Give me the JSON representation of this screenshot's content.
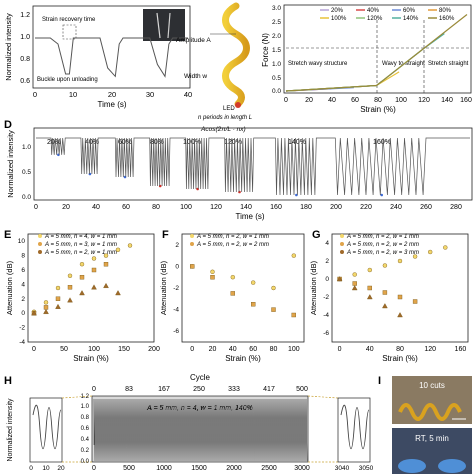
{
  "panels": {
    "C": {
      "ylabel": "Normalized intensity",
      "xlabel": "Time (s)",
      "xticks": [
        "0",
        "10",
        "20",
        "30",
        "40"
      ],
      "yticks": [
        "0.6",
        "0.8",
        "1.0",
        "1.2"
      ],
      "annotations": {
        "recovery": "Strain recovery time",
        "buckle": "Buckle upon unloading"
      }
    },
    "schematic": {
      "amplitude": "Amplitude A",
      "width": "Width w",
      "led": "LED",
      "periods": "n periods in length L",
      "formula": "Acos(2π/L · nx)"
    },
    "force": {
      "ylabel": "Force (N)",
      "xlabel": "Strain (%)",
      "xticks": [
        "0",
        "20",
        "40",
        "60",
        "80",
        "100",
        "120",
        "140",
        "160"
      ],
      "yticks": [
        "0.0",
        "0.5",
        "1.0",
        "1.5",
        "2.0",
        "2.5",
        "3.0"
      ],
      "regions": [
        "Stretch wavy structure",
        "Wavy to straight",
        "Stretch straight"
      ],
      "legend": [
        "20%",
        "40%",
        "60%",
        "80%",
        "100%",
        "120%",
        "140%",
        "160%"
      ],
      "legend_colors": [
        "#b7a3d8",
        "#d94a4a",
        "#6c8ad8",
        "#e39a3a",
        "#e8c23a",
        "#8fc37a",
        "#52b1a1",
        "#9a8a3a"
      ]
    },
    "D": {
      "letter": "D",
      "ylabel": "Normalized intensity",
      "xlabel": "Time (s)",
      "xticks": [
        "0",
        "20",
        "40",
        "60",
        "80",
        "100",
        "120",
        "140",
        "160",
        "180",
        "200",
        "220",
        "240",
        "260",
        "280"
      ],
      "yticks": [
        "0.0",
        "0.5",
        "1.0"
      ],
      "strains": [
        "20%",
        "40%",
        "60%",
        "80%",
        "100%",
        "120%",
        "140%",
        "160%"
      ]
    },
    "E": {
      "letter": "E",
      "ylabel": "Attenuation (dB)",
      "xlabel": "Strain (%)",
      "xticks": [
        "0",
        "50",
        "100",
        "150",
        "200"
      ],
      "yticks": [
        "-4",
        "-2",
        "0",
        "2",
        "4",
        "6",
        "8",
        "10"
      ],
      "legend": [
        "A = 5 mm, n = 4, w = 1 mm",
        "A = 5 mm, n = 3, w = 1 mm",
        "A = 5 mm, n = 2, w = 1 mm"
      ]
    },
    "F": {
      "letter": "F",
      "ylabel": "Attenuation (dB)",
      "xlabel": "Strain (%)",
      "xticks": [
        "0",
        "20",
        "40",
        "60",
        "80",
        "100"
      ],
      "yticks": [
        "-6",
        "-4",
        "-2",
        "0",
        "2"
      ],
      "legend": [
        "A = 5 mm, n = 2, w = 1 mm",
        "A = 5 mm, n = 2, w = 2 mm"
      ]
    },
    "G": {
      "letter": "G",
      "ylabel": "Attenuation (dB)",
      "xlabel": "Strain (%)",
      "xticks": [
        "0",
        "40",
        "80",
        "120",
        "160"
      ],
      "yticks": [
        "-6",
        "-4",
        "-2",
        "0",
        "2",
        "4"
      ],
      "legend": [
        "A = 5 mm, n = 2, w = 1 mm",
        "A = 5 mm, n = 2, w = 2 mm",
        "A = 5 mm, n = 2, w = 3 mm"
      ]
    },
    "H": {
      "letter": "H",
      "ylabel": "Normalized intensity",
      "cycle_label": "Cycle",
      "cycle_ticks": [
        "0",
        "83",
        "167",
        "250",
        "333",
        "417",
        "500"
      ],
      "time_ticks": [
        "0",
        "500",
        "1000",
        "1500",
        "2000",
        "2500",
        "3000"
      ],
      "yticks": [
        "0.0",
        "0.2",
        "0.4",
        "0.6",
        "0.8",
        "1.0",
        "1.2"
      ],
      "inset_left_ticks": [
        "0",
        "10",
        "20"
      ],
      "inset_right_ticks": [
        "3040",
        "3050"
      ],
      "condition": "A = 5 mm, n = 4, w = 1 mm, 140%"
    },
    "I": {
      "letter": "I",
      "photo1": "10 cuts",
      "photo2": "RT, 5 min"
    }
  },
  "chart_data": [
    {
      "type": "line",
      "panel": "C",
      "x": [
        0,
        4,
        6,
        8,
        9,
        10,
        17,
        19,
        21,
        22,
        23,
        30,
        32,
        34,
        35,
        36,
        40
      ],
      "y": [
        1.0,
        1.0,
        0.95,
        0.7,
        0.7,
        1.0,
        1.0,
        0.75,
        0.68,
        0.95,
        1.0,
        1.0,
        0.78,
        0.68,
        0.95,
        1.0,
        1.0
      ],
      "xlim": [
        0,
        40
      ],
      "ylim": [
        0.6,
        1.25
      ]
    },
    {
      "type": "line",
      "panel": "force",
      "series": [
        {
          "name": "20%",
          "x": [
            0,
            20
          ],
          "y": [
            0.0,
            0.05
          ]
        },
        {
          "name": "40%",
          "x": [
            0,
            40
          ],
          "y": [
            0.0,
            0.08
          ]
        },
        {
          "name": "60%",
          "x": [
            0,
            60
          ],
          "y": [
            0.0,
            0.12
          ]
        },
        {
          "name": "80%",
          "x": [
            0,
            80
          ],
          "y": [
            0.0,
            0.2
          ]
        },
        {
          "name": "100%",
          "x": [
            0,
            80,
            100
          ],
          "y": [
            0.0,
            0.2,
            0.7
          ]
        },
        {
          "name": "120%",
          "x": [
            0,
            80,
            120
          ],
          "y": [
            0.0,
            0.2,
            1.5
          ]
        },
        {
          "name": "140%",
          "x": [
            0,
            80,
            120,
            140
          ],
          "y": [
            0.0,
            0.2,
            1.5,
            2.1
          ]
        },
        {
          "name": "160%",
          "x": [
            0,
            80,
            120,
            160
          ],
          "y": [
            0.0,
            0.2,
            1.5,
            2.8
          ]
        }
      ],
      "xlim": [
        0,
        160
      ],
      "ylim": [
        0,
        3.0
      ]
    },
    {
      "type": "line",
      "panel": "D",
      "segments": [
        {
          "strain": "20%",
          "t0": 10,
          "t1": 20,
          "min": 0.72
        },
        {
          "strain": "40%",
          "t0": 30,
          "t1": 42,
          "min": 0.4
        },
        {
          "strain": "60%",
          "t0": 53,
          "t1": 66,
          "min": 0.35
        },
        {
          "strain": "80%",
          "t0": 76,
          "t1": 90,
          "min": 0.2
        },
        {
          "strain": "100%",
          "t0": 100,
          "t1": 116,
          "min": 0.15
        },
        {
          "strain": "120%",
          "t0": 126,
          "t1": 146,
          "min": 0.1
        },
        {
          "strain": "140%",
          "t0": 160,
          "t1": 188,
          "min": 0.05
        },
        {
          "strain": "160%",
          "t0": 200,
          "t1": 262,
          "min": 0.05
        }
      ],
      "xlim": [
        0,
        290
      ],
      "ylim": [
        0,
        1.1
      ]
    },
    {
      "type": "scatter",
      "panel": "E",
      "series": [
        {
          "name": "A = 5 mm, n = 4, w = 1 mm",
          "x": [
            0,
            20,
            40,
            60,
            80,
            100,
            120,
            140,
            160
          ],
          "y": [
            0.2,
            1.5,
            3.5,
            5.2,
            6.8,
            7.6,
            8.0,
            8.8,
            9.4
          ]
        },
        {
          "name": "A = 5 mm, n = 3, w = 1 mm",
          "x": [
            0,
            20,
            40,
            60,
            80,
            100,
            120
          ],
          "y": [
            0.0,
            0.8,
            2.0,
            3.6,
            5.0,
            6.0,
            6.8
          ]
        },
        {
          "name": "A = 5 mm, n = 2, w = 1 mm",
          "x": [
            0,
            20,
            40,
            60,
            80,
            100,
            120,
            140
          ],
          "y": [
            0.0,
            0.2,
            0.9,
            1.8,
            2.8,
            3.6,
            3.8,
            2.8
          ]
        }
      ],
      "xlim": [
        -10,
        200
      ],
      "ylim": [
        -4,
        11
      ]
    },
    {
      "type": "scatter",
      "panel": "F",
      "series": [
        {
          "name": "A = 5 mm, n = 2, w = 1 mm",
          "x": [
            0,
            20,
            40,
            60,
            80,
            100
          ],
          "y": [
            0.0,
            -0.5,
            -1.0,
            -1.5,
            -2.0,
            1.0
          ]
        },
        {
          "name": "A = 5 mm, n = 2, w = 2 mm",
          "x": [
            0,
            20,
            40,
            60,
            80,
            100
          ],
          "y": [
            0.0,
            -1.0,
            -2.5,
            -3.5,
            -4.0,
            -4.5
          ]
        }
      ],
      "xlim": [
        -10,
        110
      ],
      "ylim": [
        -7,
        3
      ]
    },
    {
      "type": "scatter",
      "panel": "G",
      "series": [
        {
          "name": "A = 5 mm, n = 2, w = 1 mm",
          "x": [
            0,
            20,
            40,
            60,
            80,
            100,
            120,
            140
          ],
          "y": [
            0.0,
            0.5,
            1.0,
            1.5,
            2.0,
            2.5,
            3.0,
            3.5
          ]
        },
        {
          "name": "A = 5 mm, n = 2, w = 2 mm",
          "x": [
            0,
            20,
            40,
            60,
            80,
            100
          ],
          "y": [
            0.0,
            -0.5,
            -1.0,
            -1.5,
            -2.0,
            -2.5
          ]
        },
        {
          "name": "A = 5 mm, n = 2, w = 3 mm",
          "x": [
            0,
            20,
            40,
            60,
            80
          ],
          "y": [
            0.0,
            -1.0,
            -2.0,
            -3.0,
            -4.0
          ]
        }
      ],
      "xlim": [
        -10,
        170
      ],
      "ylim": [
        -7,
        5
      ]
    }
  ]
}
